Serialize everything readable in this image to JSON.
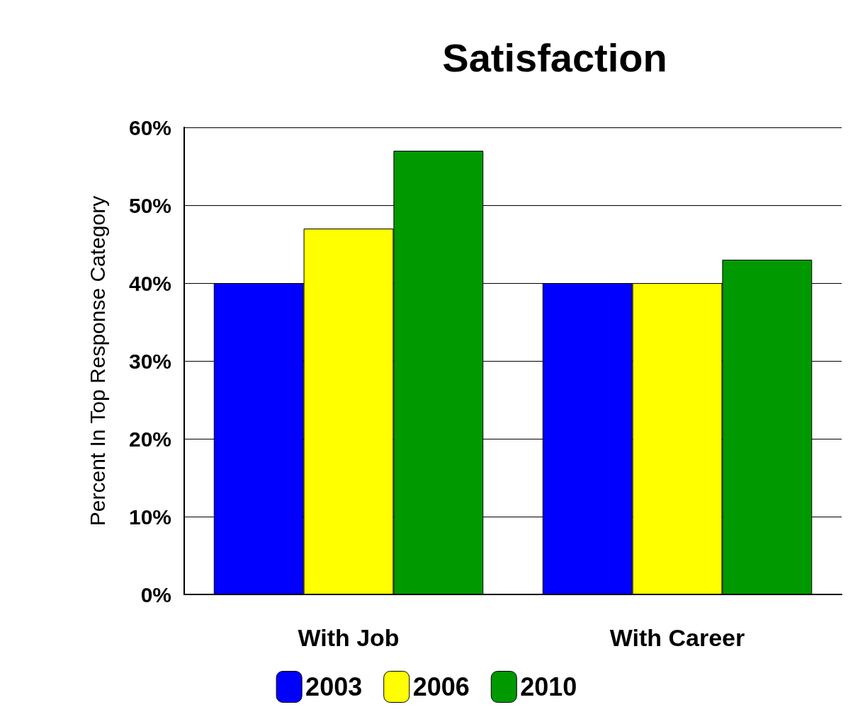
{
  "chart_data": {
    "type": "bar",
    "title": "Satisfaction",
    "ylabel": "Percent In Top Response Category",
    "categories": [
      "With Job",
      "With Career"
    ],
    "series": [
      {
        "name": "2003",
        "color": "#0000ff",
        "values": [
          40,
          40
        ]
      },
      {
        "name": "2006",
        "color": "#ffff00",
        "values": [
          47,
          40
        ]
      },
      {
        "name": "2010",
        "color": "#009900",
        "values": [
          57,
          43
        ]
      }
    ],
    "ylim": [
      0,
      60
    ],
    "yticks": [
      {
        "value": 0,
        "label": "0%"
      },
      {
        "value": 10,
        "label": "10%"
      },
      {
        "value": 20,
        "label": "20%"
      },
      {
        "value": 30,
        "label": "30%"
      },
      {
        "value": 40,
        "label": "40%"
      },
      {
        "value": 50,
        "label": "50%"
      },
      {
        "value": 60,
        "label": "60%"
      }
    ],
    "grid": "y",
    "legend": "bottom"
  }
}
